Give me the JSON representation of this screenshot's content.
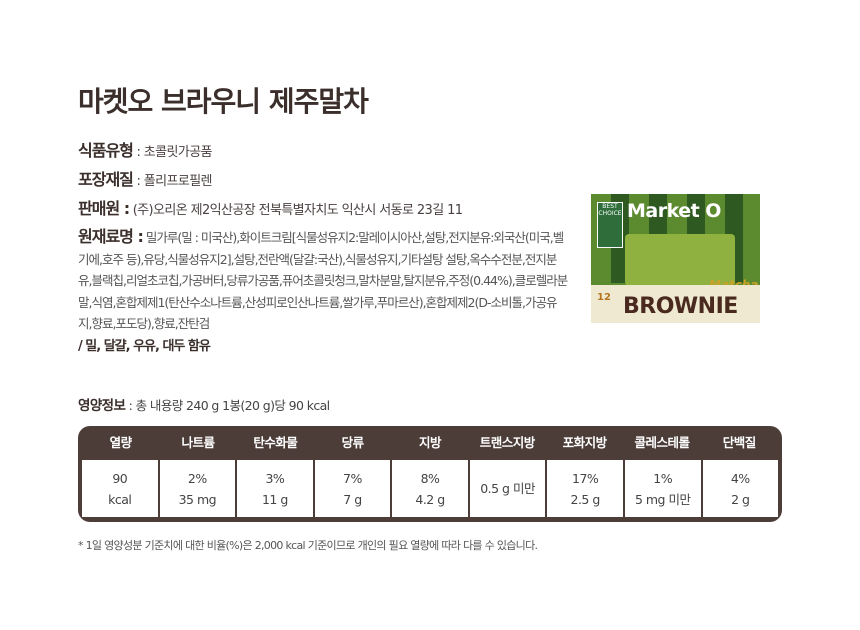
{
  "title": "마켓오 브라우니 제주말차",
  "specs": {
    "type_label": "식품유형",
    "type_value": ": 초콜릿가공품",
    "pack_label": "포장재질",
    "pack_value": ": 폴리프로필렌",
    "seller_label": "판매원 :",
    "seller_value": "(주)오리온 제2익산공장 전북특별자치도 익산시 서동로 23길 11",
    "ingredients_label": "원재료명 :",
    "ingredients_value": "밀가루(밀 : 미국산),화이트크림[식물성유지2:말레이시아산,설탕,전지분유:외국산(미국,벨기에,호주 등),유당,식물성유지2],설탕,전란액(달걀:국산),식물성유지,기타설탕 설탕,옥수수전분,전지분유,블랙칩,리얼초코칩,가공버터,당류가공품,퓨어초콜릿청크,말차분말,탈지분유,주정(0.44%),클로렐라분말,식염,혼합제제1(탄산수소나트륨,산성피로인산나트륨,쌀가루,푸마르산),혼합제제2(D-소비톨,가공유지,향료,포도당),향료,잔탄검",
    "allergy": "/ 밀, 달걀, 우유, 대두 함유"
  },
  "product_image": {
    "best_choice": "BEST CHOICE",
    "brand": "Market O",
    "flavor": "Matcha",
    "name": "BROWNIE",
    "count": "12"
  },
  "nutrition": {
    "label": "영양정보",
    "summary": ": 총 내용량 240 g 1봉(20 g)당 90 kcal",
    "headers": [
      "열량",
      "나트륨",
      "탄수화물",
      "당류",
      "지방",
      "트랜스지방",
      "포화지방",
      "콜레스테롤",
      "단백질"
    ],
    "values": [
      [
        "90",
        "kcal"
      ],
      [
        "2%",
        "35 mg"
      ],
      [
        "3%",
        "11 g"
      ],
      [
        "7%",
        "7 g"
      ],
      [
        "8%",
        "4.2 g"
      ],
      [
        "0.5 g 미만",
        ""
      ],
      [
        "17%",
        "2.5 g"
      ],
      [
        "1%",
        "5 mg 미만"
      ],
      [
        "4%",
        "2 g"
      ]
    ],
    "footnote": "* 1일 영양성분 기준치에 대한 비율(%)은 2,000 kcal 기준이므로 개인의 필요 열량에 따라 다를 수 있습니다."
  }
}
